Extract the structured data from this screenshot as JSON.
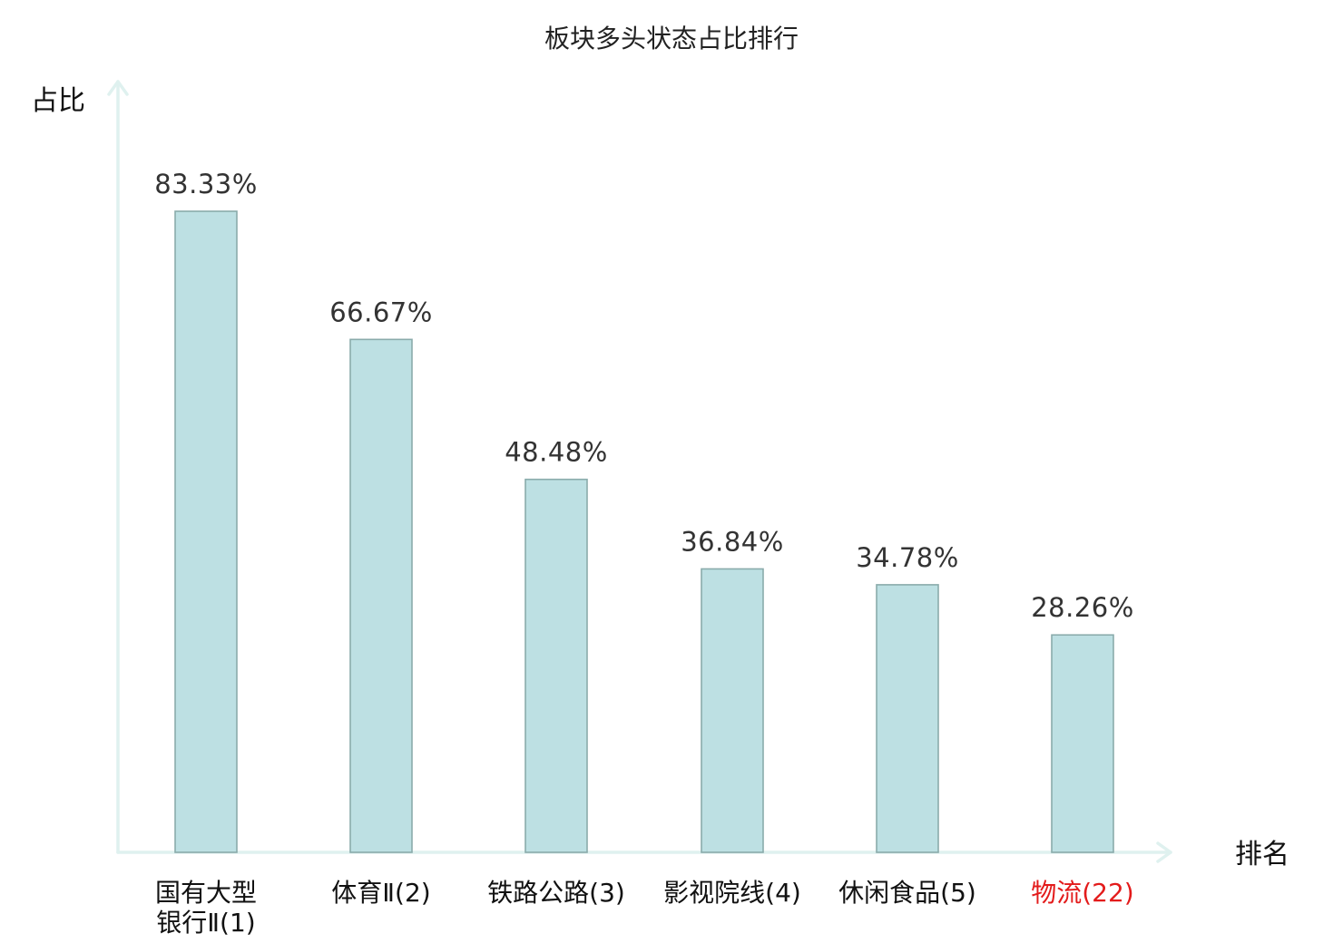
{
  "chart_data": {
    "type": "bar",
    "title": "板块多头状态占比排行",
    "ylabel": "占比",
    "xlabel": "排名",
    "categories": [
      [
        "国有大型",
        "银行Ⅱ(1)"
      ],
      [
        "体育Ⅱ(2)"
      ],
      [
        "铁路公路(3)"
      ],
      [
        "影视院线(4)"
      ],
      [
        "休闲食品(5)"
      ],
      [
        "物流(22)"
      ]
    ],
    "values": [
      83.33,
      66.67,
      48.48,
      36.84,
      34.78,
      28.26
    ],
    "value_labels": [
      "83.33%",
      "66.67%",
      "48.48%",
      "36.84%",
      "34.78%",
      "28.26%"
    ],
    "highlight_index": 5,
    "ylim": [
      0,
      100
    ],
    "grid": false,
    "legend": "none",
    "colors": {
      "bar_fill": "#bde0e3",
      "bar_stroke": "#8aabab",
      "axis": "#dff1ef",
      "highlight_text": "#e31b1b"
    }
  }
}
